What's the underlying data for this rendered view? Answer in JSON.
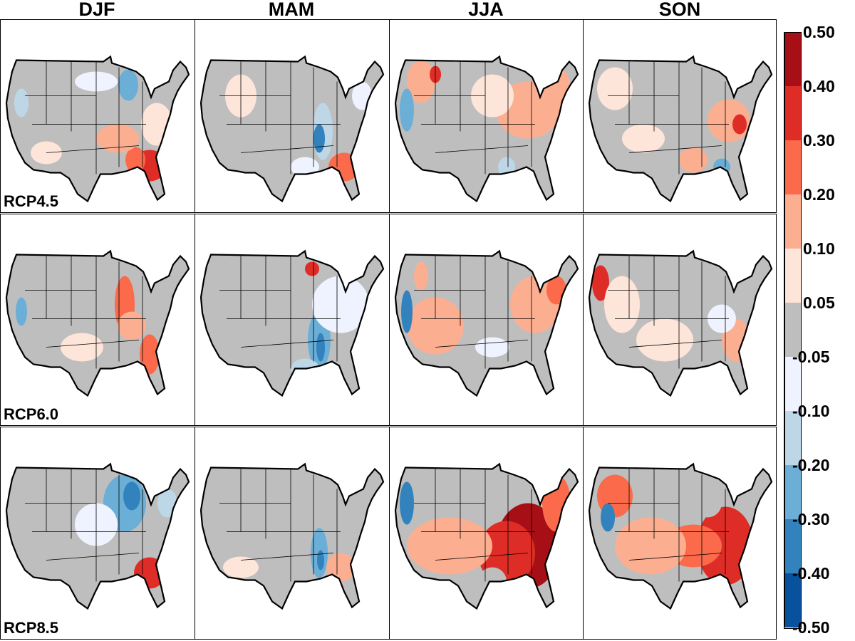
{
  "chart_data": {
    "type": "heatmap",
    "title": "",
    "columns": [
      "DJF",
      "MAM",
      "JJA",
      "SON"
    ],
    "rows": [
      "RCP4.5",
      "RCP6.0",
      "RCP8.5"
    ],
    "colorbar": {
      "labels": [
        "0.50",
        "0.40",
        "0.30",
        "0.20",
        "0.10",
        "0.05",
        "-0.05",
        "-0.10",
        "-0.20",
        "-0.30",
        "-0.40",
        "-0.50"
      ],
      "colors": [
        "#a50f15",
        "#de2d26",
        "#fb6a4a",
        "#fcae91",
        "#fee5d9",
        "#bebebe",
        "#eff3ff",
        "#bdd7e7",
        "#6baed6",
        "#3182bd",
        "#08519c"
      ],
      "range": [
        -0.5,
        0.5
      ]
    }
  }
}
